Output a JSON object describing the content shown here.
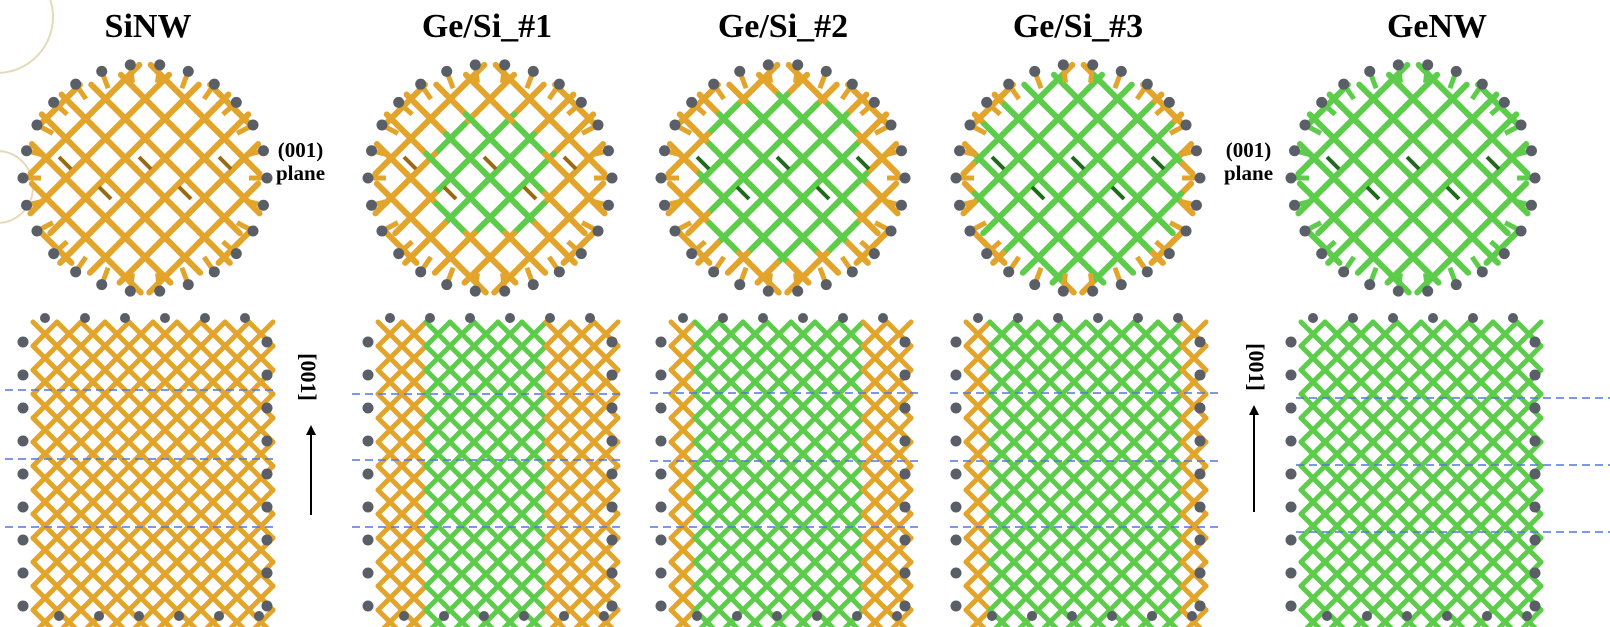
{
  "panels": [
    {
      "title": "SiNW",
      "ge_level": 0
    },
    {
      "title": "Ge/Si_#1",
      "ge_level": 1
    },
    {
      "title": "Ge/Si_#2",
      "ge_level": 2
    },
    {
      "title": "Ge/Si_#3",
      "ge_level": 3
    },
    {
      "title": "GeNW",
      "ge_level": 4
    }
  ],
  "labels": {
    "plane_line1": "(001)",
    "plane_line2": "plane",
    "axis": "[001]"
  },
  "colors": {
    "si_bond": "#e2a42a",
    "si_bond_dark": "#9a6a12",
    "ge_bond": "#5ccc4a",
    "ge_bond_dark": "#1e6a1a",
    "hydrogen": "#5a5e66",
    "dashed_line": "#5577dd",
    "arrow": "#000000"
  }
}
